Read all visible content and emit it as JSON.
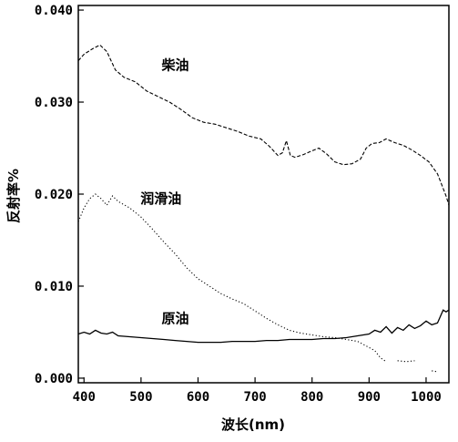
{
  "chart_data": {
    "type": "line",
    "xlabel": "波长(nm)",
    "ylabel": "反射率%",
    "xlim": [
      390,
      1040
    ],
    "ylim": [
      -0.0005,
      0.0405
    ],
    "x_ticks": [
      400,
      500,
      600,
      700,
      800,
      900,
      1000
    ],
    "y_ticks": [
      0.0,
      0.01,
      0.02,
      0.03,
      0.04
    ],
    "x_tick_labels": [
      "400",
      "500",
      "600",
      "700",
      "800",
      "900",
      "1000"
    ],
    "y_tick_labels": [
      "0.000",
      "0.010",
      "0.020",
      "0.030",
      "0.040"
    ],
    "grid": false,
    "legend": "inline labels",
    "series": [
      {
        "name": "柴油",
        "style": "dashed",
        "points": [
          [
            390,
            0.0345
          ],
          [
            400,
            0.0352
          ],
          [
            415,
            0.0358
          ],
          [
            428,
            0.0362
          ],
          [
            440,
            0.0355
          ],
          [
            455,
            0.0335
          ],
          [
            470,
            0.0327
          ],
          [
            490,
            0.0322
          ],
          [
            510,
            0.0312
          ],
          [
            530,
            0.0306
          ],
          [
            550,
            0.03
          ],
          [
            570,
            0.0292
          ],
          [
            590,
            0.0283
          ],
          [
            610,
            0.0278
          ],
          [
            630,
            0.0276
          ],
          [
            650,
            0.0272
          ],
          [
            670,
            0.0268
          ],
          [
            690,
            0.0263
          ],
          [
            710,
            0.026
          ],
          [
            725,
            0.0252
          ],
          [
            740,
            0.0242
          ],
          [
            748,
            0.0245
          ],
          [
            755,
            0.0258
          ],
          [
            762,
            0.0242
          ],
          [
            770,
            0.024
          ],
          [
            785,
            0.0243
          ],
          [
            800,
            0.0247
          ],
          [
            812,
            0.025
          ],
          [
            825,
            0.0244
          ],
          [
            840,
            0.0235
          ],
          [
            855,
            0.0232
          ],
          [
            870,
            0.0233
          ],
          [
            885,
            0.0238
          ],
          [
            895,
            0.025
          ],
          [
            905,
            0.0255
          ],
          [
            918,
            0.0256
          ],
          [
            930,
            0.026
          ],
          [
            945,
            0.0256
          ],
          [
            960,
            0.0253
          ],
          [
            975,
            0.0248
          ],
          [
            990,
            0.0242
          ],
          [
            1005,
            0.0235
          ],
          [
            1020,
            0.0222
          ],
          [
            1035,
            0.0198
          ],
          [
            1040,
            0.0188
          ]
        ]
      },
      {
        "name": "润滑油",
        "style": "dotted",
        "points": [
          [
            390,
            0.017
          ],
          [
            400,
            0.0185
          ],
          [
            410,
            0.0195
          ],
          [
            420,
            0.02
          ],
          [
            430,
            0.0195
          ],
          [
            440,
            0.0188
          ],
          [
            450,
            0.0198
          ],
          [
            460,
            0.0192
          ],
          [
            480,
            0.0185
          ],
          [
            500,
            0.0175
          ],
          [
            520,
            0.0162
          ],
          [
            540,
            0.0148
          ],
          [
            560,
            0.0135
          ],
          [
            580,
            0.012
          ],
          [
            600,
            0.0108
          ],
          [
            620,
            0.01
          ],
          [
            640,
            0.0092
          ],
          [
            660,
            0.0086
          ],
          [
            680,
            0.0081
          ],
          [
            700,
            0.0073
          ],
          [
            720,
            0.0065
          ],
          [
            740,
            0.0058
          ],
          [
            760,
            0.0052
          ],
          [
            780,
            0.0049
          ],
          [
            800,
            0.0047
          ],
          [
            820,
            0.0045
          ],
          [
            840,
            0.0044
          ],
          [
            860,
            0.0042
          ],
          [
            880,
            0.004
          ],
          [
            895,
            0.0035
          ],
          [
            910,
            0.003
          ],
          [
            920,
            0.0022
          ],
          [
            930,
            0.0018
          ]
        ]
      },
      {
        "name": "润滑油",
        "style": "dotted",
        "points": [
          [
            950,
            0.0019
          ],
          [
            965,
            0.0018
          ],
          [
            980,
            0.0019
          ]
        ]
      },
      {
        "name": "润滑油",
        "style": "dotted",
        "points": [
          [
            1010,
            0.0008
          ],
          [
            1020,
            0.0007
          ]
        ]
      },
      {
        "name": "原油",
        "style": "solid",
        "points": [
          [
            390,
            0.0048
          ],
          [
            400,
            0.005
          ],
          [
            410,
            0.0048
          ],
          [
            420,
            0.0052
          ],
          [
            430,
            0.0049
          ],
          [
            440,
            0.0048
          ],
          [
            450,
            0.005
          ],
          [
            460,
            0.0046
          ],
          [
            480,
            0.0045
          ],
          [
            500,
            0.0044
          ],
          [
            520,
            0.0043
          ],
          [
            540,
            0.0042
          ],
          [
            560,
            0.0041
          ],
          [
            580,
            0.004
          ],
          [
            600,
            0.0039
          ],
          [
            620,
            0.0039
          ],
          [
            640,
            0.0039
          ],
          [
            660,
            0.004
          ],
          [
            680,
            0.004
          ],
          [
            700,
            0.004
          ],
          [
            720,
            0.0041
          ],
          [
            740,
            0.0041
          ],
          [
            760,
            0.0042
          ],
          [
            780,
            0.0042
          ],
          [
            800,
            0.0042
          ],
          [
            820,
            0.0043
          ],
          [
            840,
            0.0043
          ],
          [
            860,
            0.0044
          ],
          [
            880,
            0.0046
          ],
          [
            900,
            0.0048
          ],
          [
            910,
            0.0052
          ],
          [
            920,
            0.005
          ],
          [
            930,
            0.0056
          ],
          [
            940,
            0.0049
          ],
          [
            950,
            0.0055
          ],
          [
            960,
            0.0052
          ],
          [
            970,
            0.0058
          ],
          [
            980,
            0.0054
          ],
          [
            990,
            0.0057
          ],
          [
            1000,
            0.0062
          ],
          [
            1010,
            0.0058
          ],
          [
            1020,
            0.006
          ],
          [
            1030,
            0.0074
          ],
          [
            1035,
            0.0072
          ],
          [
            1040,
            0.0074
          ]
        ]
      }
    ],
    "labels": [
      {
        "text": "柴油",
        "x": 560,
        "y": 0.0335
      },
      {
        "text": "润滑油",
        "x": 535,
        "y": 0.019
      },
      {
        "text": "原油",
        "x": 560,
        "y": 0.006
      }
    ]
  }
}
